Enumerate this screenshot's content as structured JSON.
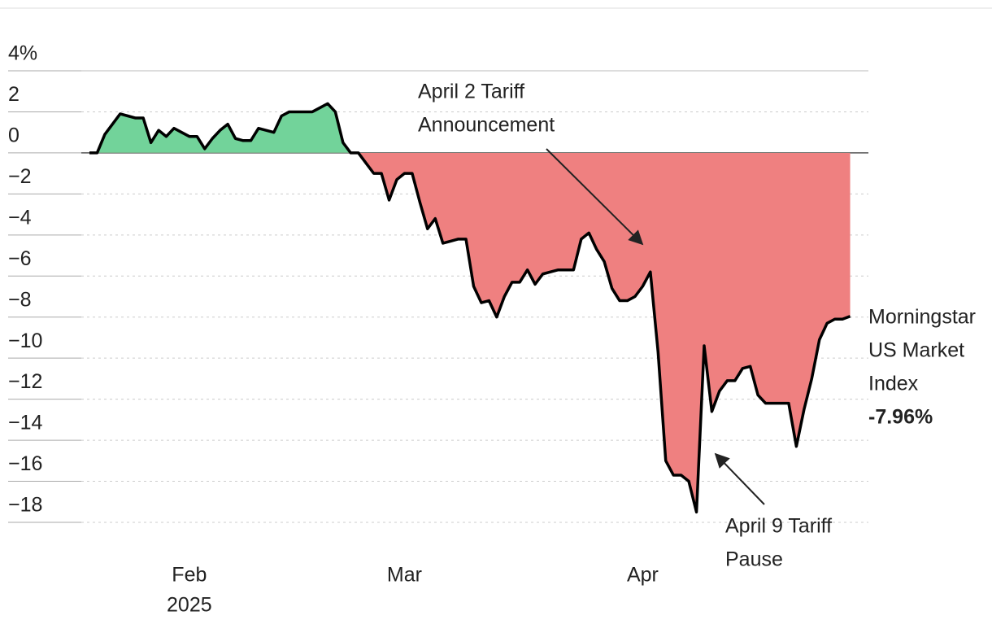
{
  "chart_data": {
    "type": "line",
    "categories": [
      null,
      null,
      null,
      null,
      null,
      null,
      null,
      null,
      null,
      null,
      null,
      null,
      null,
      "Feb",
      null,
      null,
      null,
      null,
      null,
      null,
      null,
      null,
      null,
      null,
      null,
      null,
      null,
      null,
      null,
      null,
      null,
      null,
      null,
      null,
      null,
      null,
      null,
      null,
      null,
      null,
      null,
      "Mar",
      null,
      null,
      null,
      null,
      null,
      null,
      null,
      null,
      null,
      null,
      null,
      null,
      null,
      null,
      null,
      null,
      null,
      null,
      null,
      null,
      null,
      null,
      null,
      null,
      null,
      null,
      null,
      null,
      null,
      null,
      "Apr",
      null,
      null,
      null,
      null,
      null,
      null,
      null,
      null,
      null,
      null,
      null,
      null,
      null,
      null,
      null,
      null,
      null,
      null,
      null,
      null,
      null,
      null,
      null,
      null,
      null,
      null,
      null
    ],
    "year_label": "2025",
    "series": [
      {
        "name": [
          "Morningstar",
          "US Market",
          "Index"
        ],
        "color": "#000000",
        "positive_fill": "#72d39a",
        "negative_fill": "#ef8080",
        "values": [
          0,
          0,
          0.9,
          1.4,
          1.9,
          1.8,
          1.7,
          1.7,
          0.5,
          1.1,
          0.8,
          1.2,
          1.0,
          0.8,
          0.8,
          0.2,
          0.7,
          1.1,
          1.4,
          0.7,
          0.6,
          0.6,
          1.2,
          1.1,
          1.0,
          1.8,
          2.0,
          2.0,
          2.0,
          2.0,
          2.2,
          2.4,
          2.0,
          0.5,
          0,
          0,
          -0.5,
          -1.0,
          -1.0,
          -2.3,
          -1.3,
          -1.0,
          -1.0,
          -2.4,
          -3.7,
          -3.2,
          -4.4,
          -4.3,
          -4.2,
          -4.2,
          -6.5,
          -7.3,
          -7.2,
          -8.0,
          -7.0,
          -6.3,
          -6.3,
          -5.7,
          -6.4,
          -5.9,
          -5.8,
          -5.7,
          -5.7,
          -5.7,
          -4.2,
          -3.9,
          -4.7,
          -5.3,
          -6.6,
          -7.2,
          -7.2,
          -7.0,
          -6.5,
          -5.8,
          -9.7,
          -15.0,
          -15.7,
          -15.7,
          -16.0,
          -17.5,
          -9.4,
          -12.6,
          -11.6,
          -11.1,
          -11.1,
          -10.5,
          -10.4,
          -11.8,
          -12.2,
          -12.2,
          -12.2,
          -12.2,
          -14.3,
          -12.5,
          -11.0,
          -9.1,
          -8.3,
          -8.1,
          -8.1,
          -7.96
        ],
        "last_value_label": "-7.96%"
      }
    ],
    "ylim": [
      -18,
      4
    ],
    "yticks": [
      {
        "value": 4,
        "label": "4%"
      },
      2,
      0,
      {
        "value": -2,
        "label": "−2"
      },
      {
        "value": -4,
        "label": "−4"
      },
      {
        "value": -6,
        "label": "−6"
      },
      {
        "value": -8,
        "label": "−8"
      },
      {
        "value": -10,
        "label": "−10"
      },
      {
        "value": -12,
        "label": "−12"
      },
      {
        "value": -14,
        "label": "−14"
      },
      {
        "value": -16,
        "label": "−16"
      },
      {
        "value": -18,
        "label": "−18"
      }
    ],
    "grid": true,
    "annotations": [
      {
        "lines": [
          "April 2 Tariff",
          "Announcement"
        ]
      },
      {
        "lines": [
          "April 9 Tariff",
          "Pause"
        ]
      }
    ]
  }
}
